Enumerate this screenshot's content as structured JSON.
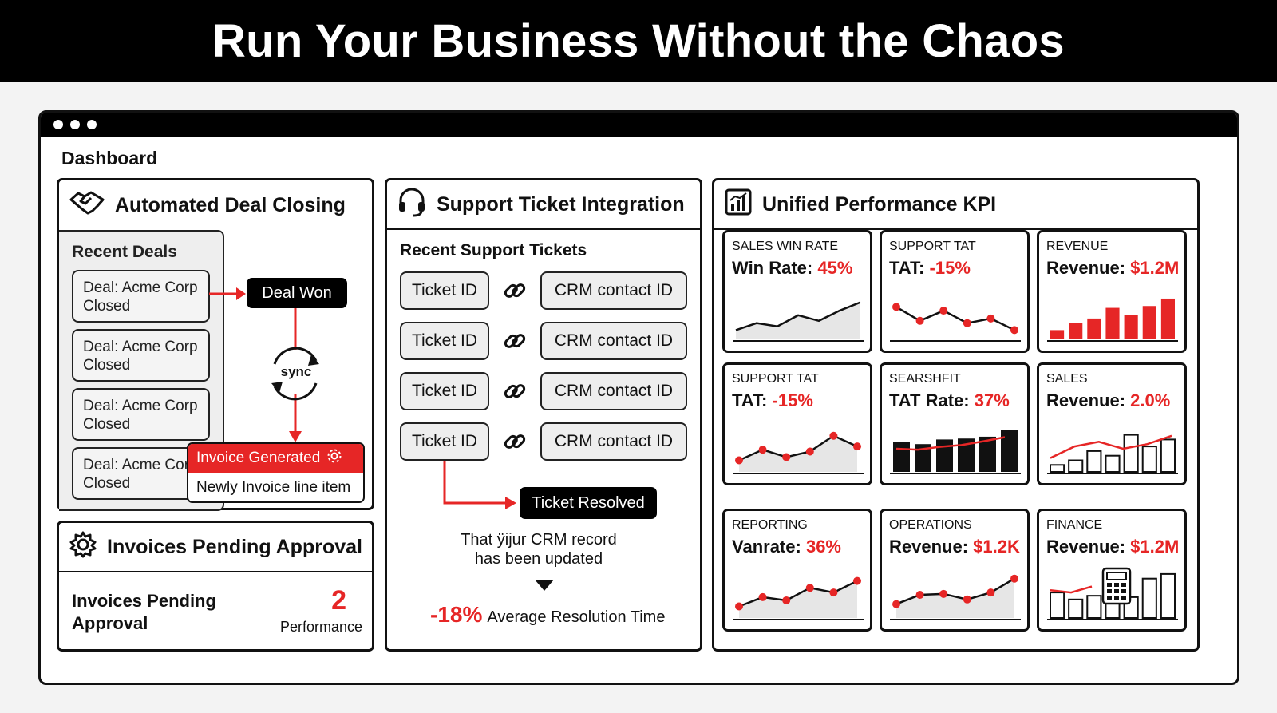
{
  "banner": {
    "title": "Run Your Business Without the Chaos"
  },
  "dashboard": {
    "title": "Dashboard"
  },
  "deal_panel": {
    "title": "Automated Deal Closing",
    "recent_label": "Recent Deals",
    "deals": [
      "Deal: Acme Corp\nClosed",
      "Deal: Acme Corp\nClosed",
      "Deal: Acme Corp\nClosed",
      "Deal: Acme Corp\nClosed"
    ],
    "deal_won": "Deal Won",
    "sync_label": "sync",
    "invoice_generated": "Invoice Generated",
    "invoice_line": "Newly Invoice line item"
  },
  "invoices_panel": {
    "title": "Invoices Pending Approval",
    "label": "Invoices Pending\nApproval",
    "count": "2",
    "sub": "Performance"
  },
  "support_panel": {
    "title": "Support Ticket Integration",
    "recent_label": "Recent Support Tickets",
    "rows": [
      {
        "ticket": "Ticket ID",
        "crm": "CRM contact ID"
      },
      {
        "ticket": "Ticket ID",
        "crm": "CRM contact ID"
      },
      {
        "ticket": "Ticket ID",
        "crm": "CRM contact ID"
      },
      {
        "ticket": "Ticket ID",
        "crm": "CRM contact ID"
      }
    ],
    "resolved": "Ticket Resolved",
    "note": "That ÿijur CRM record\nhas been updated",
    "stat_value": "-18%",
    "stat_label": "Average Resolution Time"
  },
  "kpi_panel": {
    "title": "Unified Performance KPI",
    "tiles": [
      {
        "category": "SALES WIN RATE",
        "label": "Win Rate:",
        "value": "45%",
        "chart": "area",
        "data": [
          20,
          35,
          28,
          52,
          40,
          62,
          80
        ]
      },
      {
        "category": "SUPPORT TAT",
        "label": "TAT:",
        "value": "-15%",
        "chart": "line",
        "data": [
          70,
          40,
          62,
          35,
          45,
          20
        ]
      },
      {
        "category": "REVENUE",
        "label": "Revenue:",
        "value": "$1.2M",
        "chart": "bars",
        "data": [
          20,
          35,
          45,
          68,
          52,
          72,
          88
        ]
      },
      {
        "category": "SUPPORT TAT",
        "label": "TAT:",
        "value": "-15%",
        "chart": "line-area",
        "data": [
          25,
          48,
          32,
          44,
          78,
          55
        ]
      },
      {
        "category": "SEARSHFIT",
        "label": "TAT Rate:",
        "value": "37%",
        "chart": "bars-line",
        "data": [
          65,
          60,
          70,
          72,
          76,
          90
        ],
        "line": [
          50,
          48,
          54,
          58,
          66,
          75
        ]
      },
      {
        "category": "SALES",
        "label": "Revenue:",
        "value": "2.0%",
        "chart": "bars-line-outline",
        "data": [
          15,
          25,
          45,
          35,
          80,
          55,
          70
        ],
        "line": [
          30,
          55,
          65,
          50,
          60,
          78
        ]
      },
      {
        "category": "REPORTING",
        "label": "Vanrate:",
        "value": "36%",
        "chart": "line-area",
        "data": [
          25,
          45,
          38,
          65,
          55,
          80
        ]
      },
      {
        "category": "OPERATIONS",
        "label": "Revenue:",
        "value": "$1.2K",
        "chart": "line-area",
        "data": [
          30,
          50,
          52,
          40,
          55,
          85
        ]
      },
      {
        "category": "FINANCE",
        "label": "Revenue:",
        "value": "$1.2M",
        "chart": "bars-outline-line",
        "data": [
          55,
          40,
          48,
          60,
          45,
          85,
          95
        ],
        "line": [
          60,
          55,
          68
        ]
      }
    ]
  },
  "colors": {
    "accent": "#e62626",
    "ink": "#111111"
  }
}
